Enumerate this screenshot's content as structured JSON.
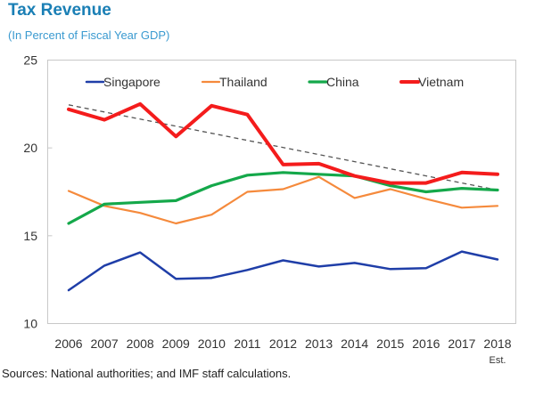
{
  "chart_data": {
    "type": "line",
    "title": "Tax Revenue",
    "subtitle": "(In Percent of Fiscal Year GDP)",
    "xlabel": "",
    "ylabel": "",
    "x": [
      "2006",
      "2007",
      "2008",
      "2009",
      "2010",
      "2011",
      "2012",
      "2013",
      "2014",
      "2015",
      "2016",
      "2017",
      "2018"
    ],
    "x_note": {
      "category": "2018",
      "text": "Est."
    },
    "ylim": [
      10,
      25
    ],
    "yticks": [
      10,
      15,
      20,
      25
    ],
    "grid": false,
    "legend": "top",
    "series": [
      {
        "name": "Singapore",
        "color": "#1f3ea8",
        "values": [
          11.9,
          13.3,
          14.05,
          12.55,
          12.6,
          13.05,
          13.6,
          13.25,
          13.45,
          13.1,
          13.15,
          14.1,
          13.65
        ]
      },
      {
        "name": "Thailand",
        "color": "#f58a3c",
        "values": [
          17.55,
          16.7,
          16.3,
          15.7,
          16.2,
          17.5,
          17.65,
          18.35,
          17.15,
          17.65,
          17.1,
          16.6,
          16.7
        ]
      },
      {
        "name": "China",
        "color": "#14a84a",
        "values": [
          15.7,
          16.8,
          16.9,
          17.0,
          17.85,
          18.45,
          18.6,
          18.5,
          18.4,
          17.85,
          17.5,
          17.7,
          17.6
        ]
      },
      {
        "name": "Vietnam",
        "color": "#f41c1c",
        "values": [
          22.2,
          21.6,
          22.5,
          20.65,
          22.4,
          21.9,
          19.05,
          19.1,
          18.4,
          18.0,
          18.0,
          18.6,
          18.5
        ]
      }
    ],
    "trendline": {
      "series": "Vietnam",
      "style": "dashed",
      "color": "#555555",
      "start": 22.45,
      "end": 17.6
    }
  },
  "footer": {
    "source": "Sources: National authorities; and IMF staff calculations."
  }
}
